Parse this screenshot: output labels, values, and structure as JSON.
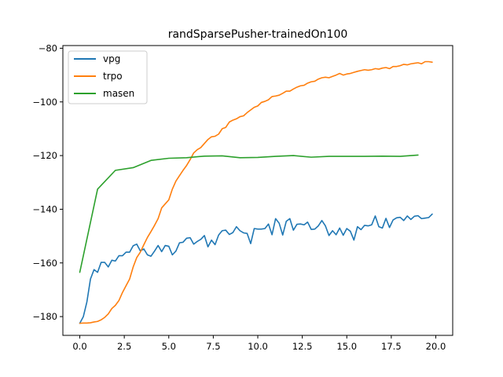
{
  "chart_data": {
    "type": "line",
    "title": "randSparsePusher-trainedOn100",
    "xlabel": "",
    "ylabel": "",
    "xlim": [
      -0.95,
      20.95
    ],
    "ylim": [
      -187,
      -79
    ],
    "xticks": [
      0.0,
      2.5,
      5.0,
      7.5,
      10.0,
      12.5,
      15.0,
      17.5,
      20.0
    ],
    "xtick_labels": [
      "0.0",
      "2.5",
      "5.0",
      "7.5",
      "10.0",
      "12.5",
      "15.0",
      "17.5",
      "20.0"
    ],
    "yticks": [
      -180,
      -160,
      -140,
      -120,
      -100,
      -80
    ],
    "ytick_labels": [
      "−180",
      "−160",
      "−140",
      "−120",
      "−100",
      "−80"
    ],
    "grid": false,
    "legend_position": "top-left",
    "series": [
      {
        "name": "vpg",
        "color": "#1f77b4",
        "x": [
          0,
          0.2,
          0.4,
          0.6,
          0.8,
          1.0,
          1.2,
          1.4,
          1.6,
          1.8,
          2.0,
          2.2,
          2.4,
          2.6,
          2.8,
          3.0,
          3.2,
          3.4,
          3.6,
          3.8,
          4.0,
          4.2,
          4.4,
          4.6,
          4.8,
          5.0,
          5.2,
          5.4,
          5.6,
          5.8,
          6.0,
          6.2,
          6.4,
          6.6,
          6.8,
          7.0,
          7.2,
          7.4,
          7.6,
          7.8,
          8.0,
          8.2,
          8.4,
          8.6,
          8.8,
          9.0,
          9.2,
          9.4,
          9.6,
          9.8,
          10.0,
          10.2,
          10.4,
          10.6,
          10.8,
          11.0,
          11.2,
          11.4,
          11.6,
          11.8,
          12.0,
          12.2,
          12.4,
          12.6,
          12.8,
          13.0,
          13.2,
          13.4,
          13.6,
          13.8,
          14.0,
          14.2,
          14.4,
          14.6,
          14.8,
          15.0,
          15.2,
          15.4,
          15.6,
          15.8,
          16.0,
          16.2,
          16.4,
          16.6,
          16.8,
          17.0,
          17.2,
          17.4,
          17.6,
          17.8,
          18.0,
          18.2,
          18.4,
          18.6,
          18.8,
          19.0,
          19.2,
          19.4,
          19.6,
          19.8
        ],
        "y": [
          -182.5,
          -180.0,
          -174.5,
          -166.0,
          -162.5,
          -163.5,
          -159.8,
          -159.8,
          -161.5,
          -159.0,
          -159.3,
          -157.3,
          -157.3,
          -156.0,
          -156.0,
          -153.6,
          -153.0,
          -155.5,
          -154.8,
          -157.0,
          -157.5,
          -155.6,
          -153.5,
          -155.8,
          -153.5,
          -153.8,
          -157.0,
          -155.6,
          -152.5,
          -152.3,
          -150.8,
          -150.6,
          -153.0,
          -152.0,
          -151.2,
          -149.8,
          -154.0,
          -151.5,
          -153.2,
          -149.6,
          -148.0,
          -147.8,
          -149.4,
          -148.7,
          -146.5,
          -148.0,
          -148.8,
          -149.0,
          -152.8,
          -147.2,
          -147.4,
          -147.4,
          -147.2,
          -145.5,
          -149.5,
          -143.5,
          -145.2,
          -149.6,
          -144.5,
          -143.5,
          -147.8,
          -145.6,
          -145.5,
          -145.8,
          -144.8,
          -147.5,
          -147.4,
          -146.2,
          -144.2,
          -146.2,
          -149.8,
          -148.0,
          -149.5,
          -147.0,
          -149.7,
          -147.2,
          -148.2,
          -151.5,
          -146.5,
          -147.6,
          -146.0,
          -146.2,
          -145.8,
          -142.5,
          -146.5,
          -147.0,
          -143.4,
          -146.8,
          -144.0,
          -143.2,
          -143.0,
          -144.2,
          -142.5,
          -143.8,
          -142.6,
          -142.4,
          -143.5,
          -143.3,
          -143.1,
          -141.8
        ]
      },
      {
        "name": "trpo",
        "color": "#ff7f0e",
        "x": [
          0,
          0.2,
          0.4,
          0.6,
          0.8,
          1.0,
          1.2,
          1.4,
          1.6,
          1.8,
          2.0,
          2.2,
          2.4,
          2.6,
          2.8,
          3.0,
          3.2,
          3.4,
          3.6,
          3.8,
          4.0,
          4.2,
          4.4,
          4.6,
          4.8,
          5.0,
          5.2,
          5.4,
          5.6,
          5.8,
          6.0,
          6.2,
          6.4,
          6.6,
          6.8,
          7.0,
          7.2,
          7.4,
          7.6,
          7.8,
          8.0,
          8.2,
          8.4,
          8.6,
          8.8,
          9.0,
          9.2,
          9.4,
          9.6,
          9.8,
          10.0,
          10.2,
          10.4,
          10.6,
          10.8,
          11.0,
          11.2,
          11.4,
          11.6,
          11.8,
          12.0,
          12.2,
          12.4,
          12.6,
          12.8,
          13.0,
          13.2,
          13.4,
          13.6,
          13.8,
          14.0,
          14.2,
          14.4,
          14.6,
          14.8,
          15.0,
          15.2,
          15.4,
          15.6,
          15.8,
          16.0,
          16.2,
          16.4,
          16.6,
          16.8,
          17.0,
          17.2,
          17.4,
          17.6,
          17.8,
          18.0,
          18.2,
          18.4,
          18.6,
          18.8,
          19.0,
          19.2,
          19.4,
          19.6,
          19.8
        ],
        "y": [
          -182.5,
          -182.4,
          -182.4,
          -182.3,
          -182.0,
          -181.8,
          -181.2,
          -180.3,
          -179.0,
          -177.0,
          -175.8,
          -174.0,
          -171.0,
          -168.5,
          -166.0,
          -161.5,
          -158.0,
          -156.0,
          -153.2,
          -150.5,
          -148.3,
          -146.0,
          -143.5,
          -139.5,
          -138.0,
          -136.5,
          -132.5,
          -129.5,
          -127.5,
          -125.5,
          -123.7,
          -121.5,
          -119.0,
          -117.8,
          -117.0,
          -115.5,
          -114.0,
          -113.0,
          -112.8,
          -112.0,
          -110.0,
          -109.5,
          -107.5,
          -106.8,
          -106.3,
          -105.5,
          -105.2,
          -104.0,
          -103.0,
          -102.0,
          -101.5,
          -100.2,
          -99.8,
          -99.2,
          -98.0,
          -97.8,
          -97.5,
          -96.8,
          -96.0,
          -96.0,
          -95.2,
          -94.5,
          -94.0,
          -93.8,
          -93.0,
          -92.5,
          -92.3,
          -91.5,
          -91.0,
          -90.8,
          -91.0,
          -90.5,
          -90.0,
          -89.4,
          -90.0,
          -89.6,
          -89.4,
          -89.0,
          -88.6,
          -88.3,
          -88.0,
          -88.2,
          -88.0,
          -87.6,
          -87.8,
          -87.4,
          -87.2,
          -87.6,
          -86.8,
          -86.8,
          -86.5,
          -86.0,
          -86.2,
          -85.8,
          -85.6,
          -85.4,
          -85.8,
          -85.0,
          -85.0,
          -85.2
        ]
      },
      {
        "name": "masen",
        "color": "#2ca02c",
        "x": [
          0,
          1,
          2,
          3,
          4,
          5,
          6,
          7,
          8,
          9,
          10,
          11,
          12,
          13,
          14,
          15,
          16,
          17,
          18,
          19
        ],
        "y": [
          -163.5,
          -132.5,
          -125.5,
          -124.5,
          -121.8,
          -121.0,
          -120.8,
          -120.2,
          -120.1,
          -120.8,
          -120.7,
          -120.3,
          -120.0,
          -120.6,
          -120.3,
          -120.3,
          -120.3,
          -120.2,
          -120.3,
          -119.8
        ]
      }
    ]
  }
}
